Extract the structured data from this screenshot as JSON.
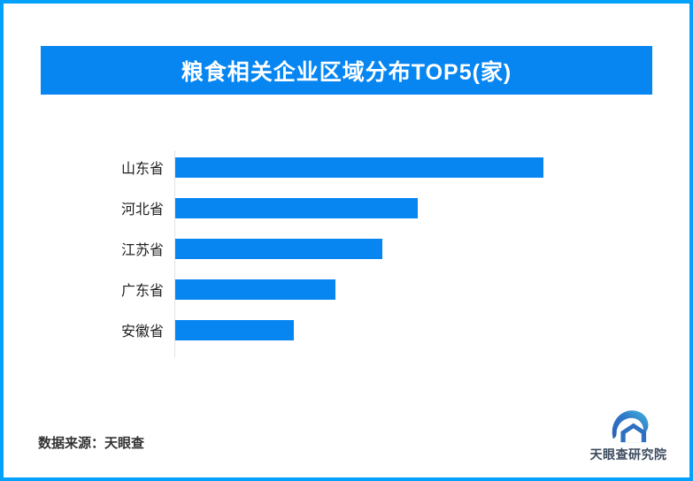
{
  "page": {
    "border_color": "#03A1FB",
    "background": "#FFFFFF"
  },
  "header": {
    "title": "粮食相关企业区域分布TOP5(家)",
    "bg_color": "#0786F2",
    "text_color": "#FFFFFF"
  },
  "chart_data": {
    "type": "bar",
    "orientation": "horizontal",
    "title": "粮食相关企业区域分布TOP5(家)",
    "categories": [
      "山东省",
      "河北省",
      "江苏省",
      "广东省",
      "安徽省"
    ],
    "values_relative_pct": [
      100,
      65.9,
      56.3,
      43.5,
      32.2
    ],
    "value_labels_shown": false,
    "xlabel": "",
    "ylabel": "",
    "grid": false,
    "legend": "none",
    "bar_color": "#0786F2",
    "axis_line_color": "#E2E2E2",
    "note": "no numeric axis or data labels are visible; values are bar lengths as percent of the longest bar"
  },
  "footer": {
    "source_text": "数据来源：天眼查",
    "logo_text": "天眼查研究院",
    "logo_blue": "#2D6FC0",
    "logo_text_color": "#3C4B5E"
  }
}
